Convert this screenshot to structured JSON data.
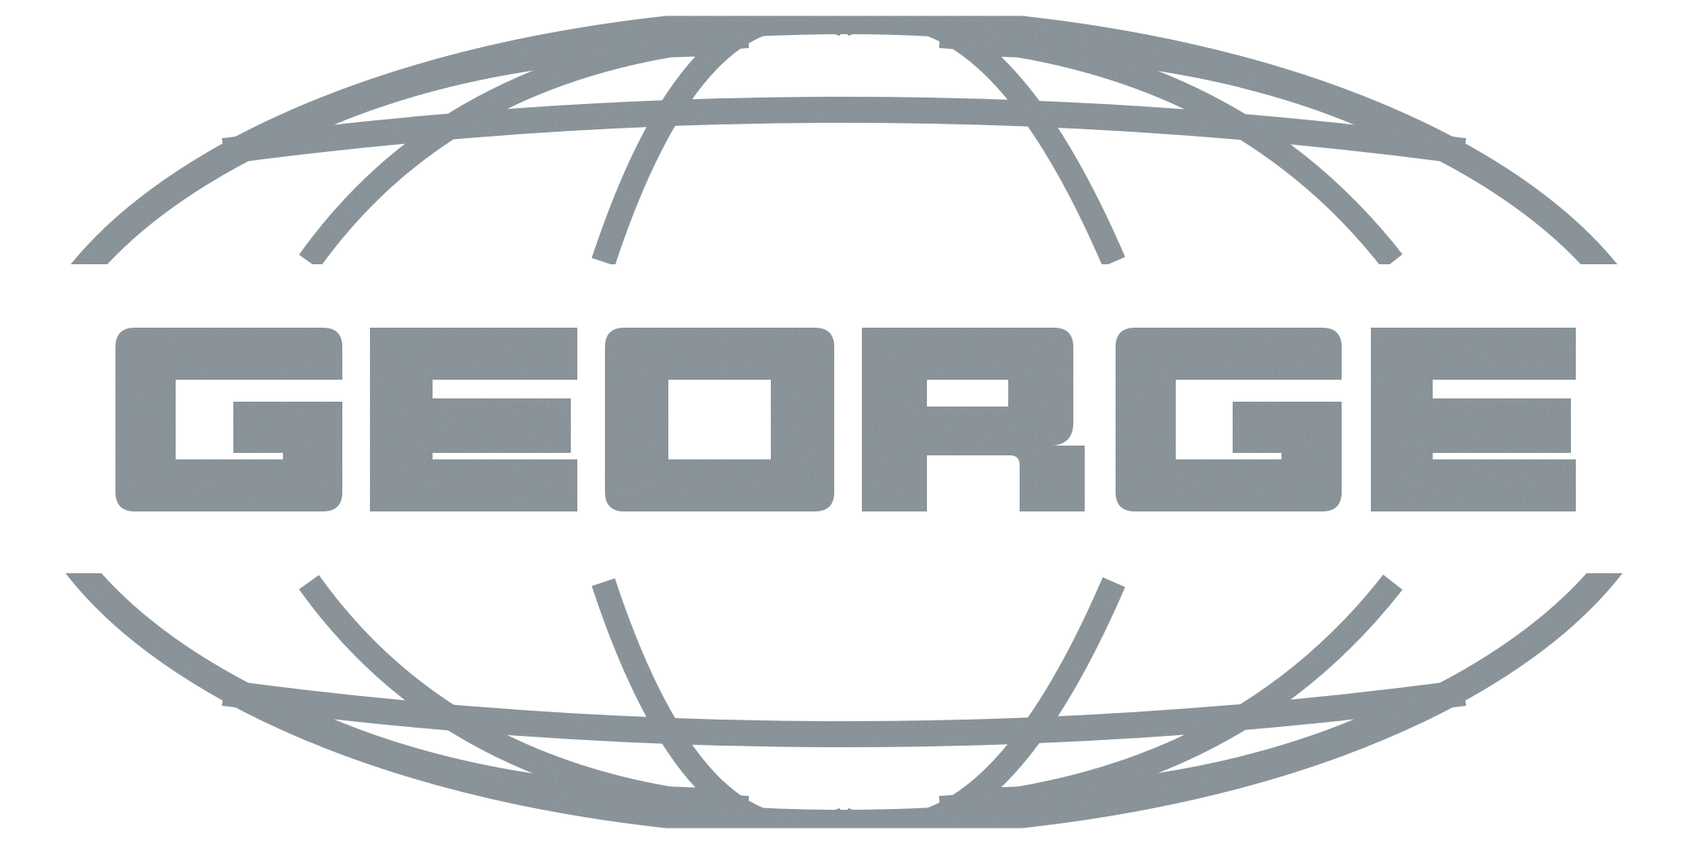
{
  "logo": {
    "wordmark": "GEORGE",
    "emblem": "globe-emblem",
    "color": "#8e979c",
    "speckle_color": "#2f3a41",
    "background": "#ffffff"
  }
}
